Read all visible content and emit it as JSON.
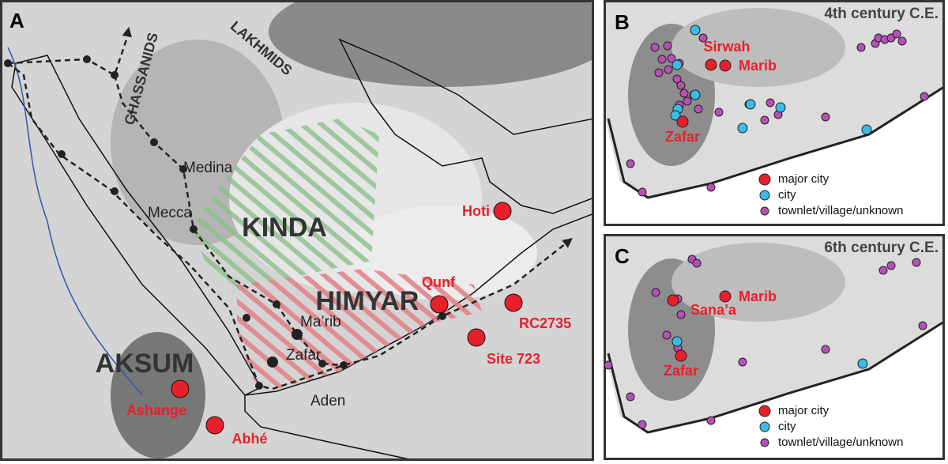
{
  "panel_a": {
    "label": "A",
    "regions": [
      "GHASSANIDS",
      "LAKHMIDS",
      "KINDA",
      "HIMYAR",
      "AKSUM"
    ],
    "cities": [
      "Medina",
      "Mecca",
      "Ma’rib",
      "Zafar",
      "Aden"
    ],
    "sites": [
      "Hoti",
      "Qunf",
      "RC2735",
      "Site 723",
      "Ashange",
      "Abhé"
    ]
  },
  "panel_b": {
    "label": "B",
    "title": "4th century C.E.",
    "cities": [
      "Sirwah",
      "Marib",
      "Zafar"
    ],
    "legend": [
      "major city",
      "city",
      "townlet/village/unknown"
    ]
  },
  "panel_c": {
    "label": "C",
    "title": "6th century C.E.",
    "cities": [
      "Marib",
      "Sana’a",
      "Zafar"
    ],
    "legend": [
      "major city",
      "city",
      "townlet/village/unknown"
    ]
  }
}
